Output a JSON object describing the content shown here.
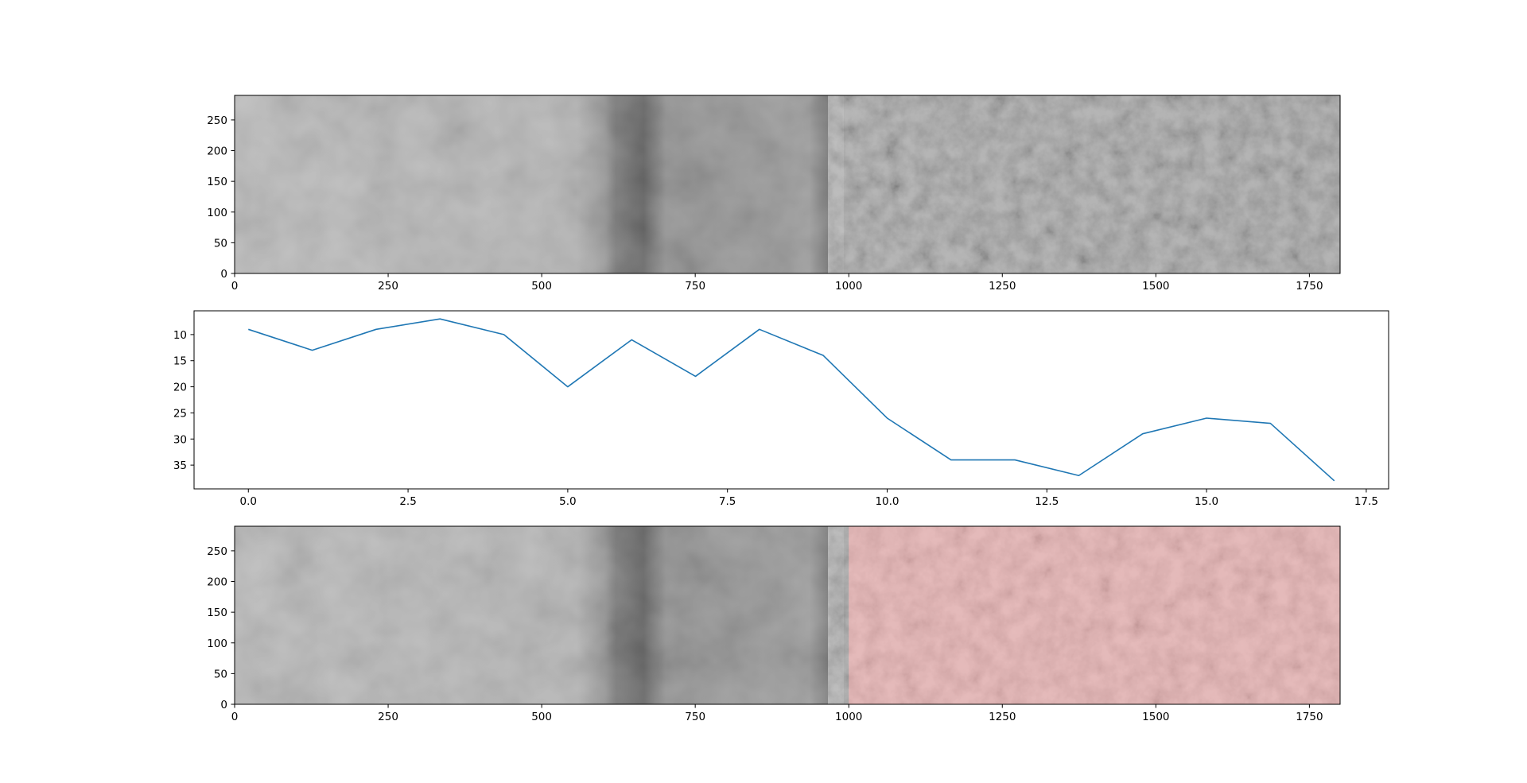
{
  "chart_data": [
    {
      "type": "image",
      "description_colors": {
        "gray_dark": "#3a3a3a",
        "gray_mid": "#8a8a8a",
        "gray_light": "#b9b9b9"
      },
      "xlim": [
        0,
        1800
      ],
      "ylim": [
        290,
        0
      ],
      "xticks": [
        0,
        250,
        500,
        750,
        1000,
        1250,
        1500,
        1750
      ],
      "yticks": [
        0,
        50,
        100,
        150,
        200,
        250
      ],
      "title": "",
      "xlabel": "",
      "ylabel": ""
    },
    {
      "type": "line",
      "x": [
        0,
        1,
        2,
        3,
        4,
        5,
        6,
        7,
        8,
        9,
        10,
        11,
        12,
        13,
        14,
        15,
        16,
        17
      ],
      "series": [
        {
          "values": [
            9,
            13,
            9,
            7,
            10,
            20,
            11,
            18,
            9,
            14,
            26,
            34,
            34,
            37,
            29,
            26,
            27,
            38
          ],
          "color": "#1f77b4"
        }
      ],
      "xlim": [
        -0.85,
        17.85
      ],
      "ylim": [
        5.45,
        39.55
      ],
      "xticks": [
        0.0,
        2.5,
        5.0,
        7.5,
        10.0,
        12.5,
        15.0,
        17.5
      ],
      "yticks": [
        10,
        15,
        20,
        25,
        30,
        35
      ],
      "grid": false,
      "title": "",
      "xlabel": "",
      "ylabel": ""
    },
    {
      "type": "image",
      "overlay_start_x": 1000,
      "overlay_color": "#d81b1b",
      "xlim": [
        0,
        1800
      ],
      "ylim": [
        290,
        0
      ],
      "xticks": [
        0,
        250,
        500,
        750,
        1000,
        1250,
        1500,
        1750
      ],
      "yticks": [
        0,
        50,
        100,
        150,
        200,
        250
      ],
      "title": "",
      "xlabel": "",
      "ylabel": ""
    }
  ]
}
